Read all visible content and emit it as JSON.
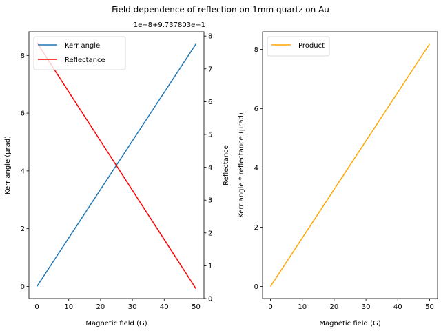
{
  "figure": {
    "title": "Field dependence of reflection on 1mm quartz on Au"
  },
  "chart_data": [
    {
      "type": "line",
      "xlabel": "Magnetic field (G)",
      "ylabel": "Kerr angle (µrad)",
      "y2label": "Reflectance",
      "y2_offset_label": "1e−8+9.737803e−1",
      "xlim": [
        -2.5,
        52.5
      ],
      "ylim": [
        -0.42,
        8.82
      ],
      "y2lim": [
        0.0,
        8.13
      ],
      "x_ticks": [
        0,
        10,
        20,
        30,
        40,
        50
      ],
      "y_ticks": [
        0,
        2,
        4,
        6,
        8
      ],
      "y2_ticks": [
        0,
        1,
        2,
        3,
        4,
        5,
        6,
        7,
        8
      ],
      "grid": false,
      "legend_position": "top-left",
      "series": [
        {
          "name": "Kerr angle",
          "axis": "left",
          "color": "#1f77b4",
          "x": [
            0,
            50
          ],
          "y": [
            0,
            8.4
          ]
        },
        {
          "name": "Reflectance",
          "axis": "right",
          "color": "#ff0000",
          "x": [
            0,
            50
          ],
          "y": [
            7.8,
            0.3
          ]
        }
      ]
    },
    {
      "type": "line",
      "xlabel": "Magnetic field (G)",
      "ylabel": "Kerr angle * reflectance (µrad)",
      "xlim": [
        -2.5,
        52.5
      ],
      "ylim": [
        -0.41,
        8.59
      ],
      "x_ticks": [
        0,
        10,
        20,
        30,
        40,
        50
      ],
      "y_ticks": [
        0,
        2,
        4,
        6,
        8
      ],
      "grid": false,
      "legend_position": "top-left",
      "series": [
        {
          "name": "Product",
          "axis": "left",
          "color": "#ffa500",
          "x": [
            0,
            50
          ],
          "y": [
            0,
            8.18
          ]
        }
      ]
    }
  ]
}
